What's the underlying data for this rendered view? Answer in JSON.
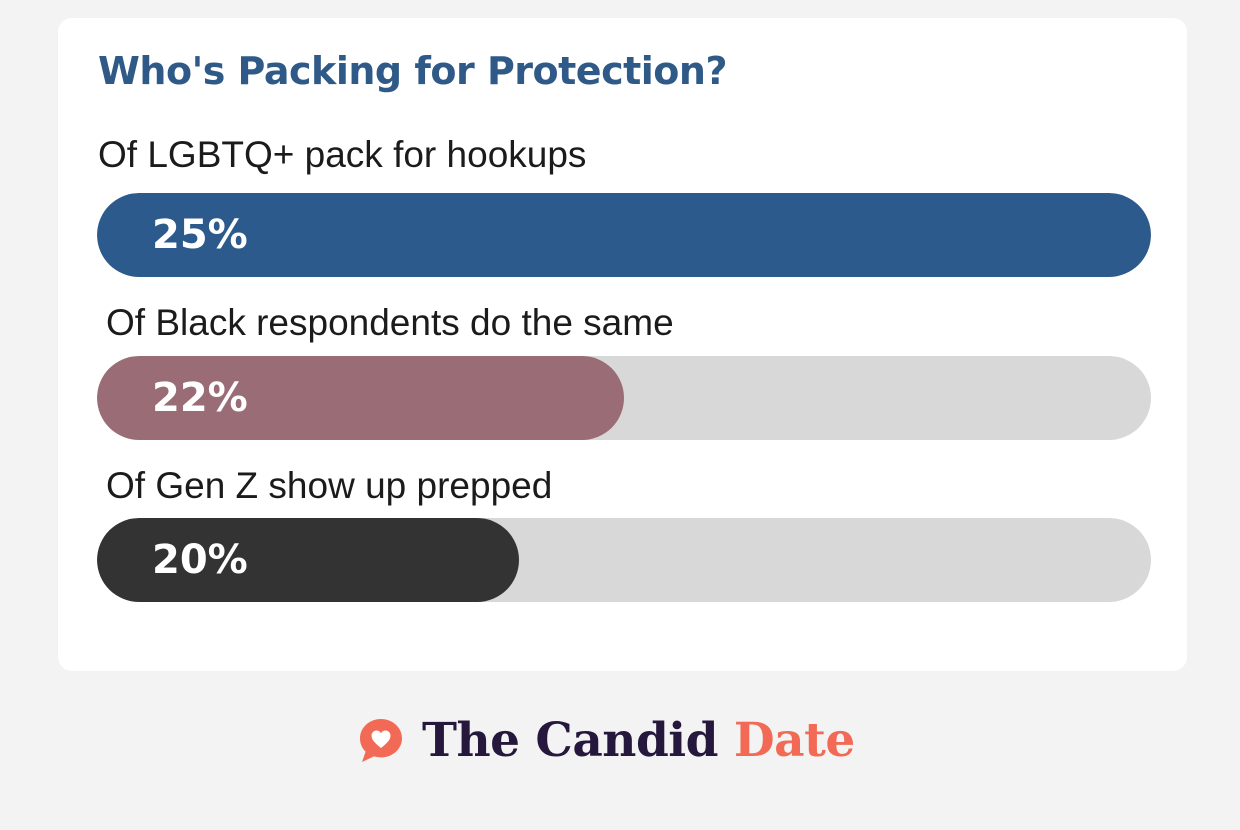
{
  "chart_data": {
    "type": "bar",
    "title": "Who's Packing for Protection?",
    "categories": [
      "Of LGBTQ+ pack for hookups",
      "Of Black respondents do the same",
      "Of Gen Z show up prepped"
    ],
    "values": [
      25,
      22,
      20
    ],
    "value_labels": [
      "25%",
      "22%",
      "20%"
    ],
    "fill_fractions": [
      1.0,
      0.5,
      0.4
    ],
    "orientation": "horizontal",
    "grid": false,
    "colors": [
      "#2d5a8c",
      "#9a6d76",
      "#333333"
    ],
    "track_color": "#d8d8d8"
  },
  "brand": {
    "name_main": "The Candid",
    "name_accent": "Date",
    "icon": "heart-speech-bubble-icon",
    "icon_color": "#f26a55",
    "text_color": "#26183d",
    "accent_color": "#f26a55"
  },
  "colors": {
    "background": "#f3f3f3",
    "card": "#ffffff",
    "title": "#2f5a87"
  }
}
